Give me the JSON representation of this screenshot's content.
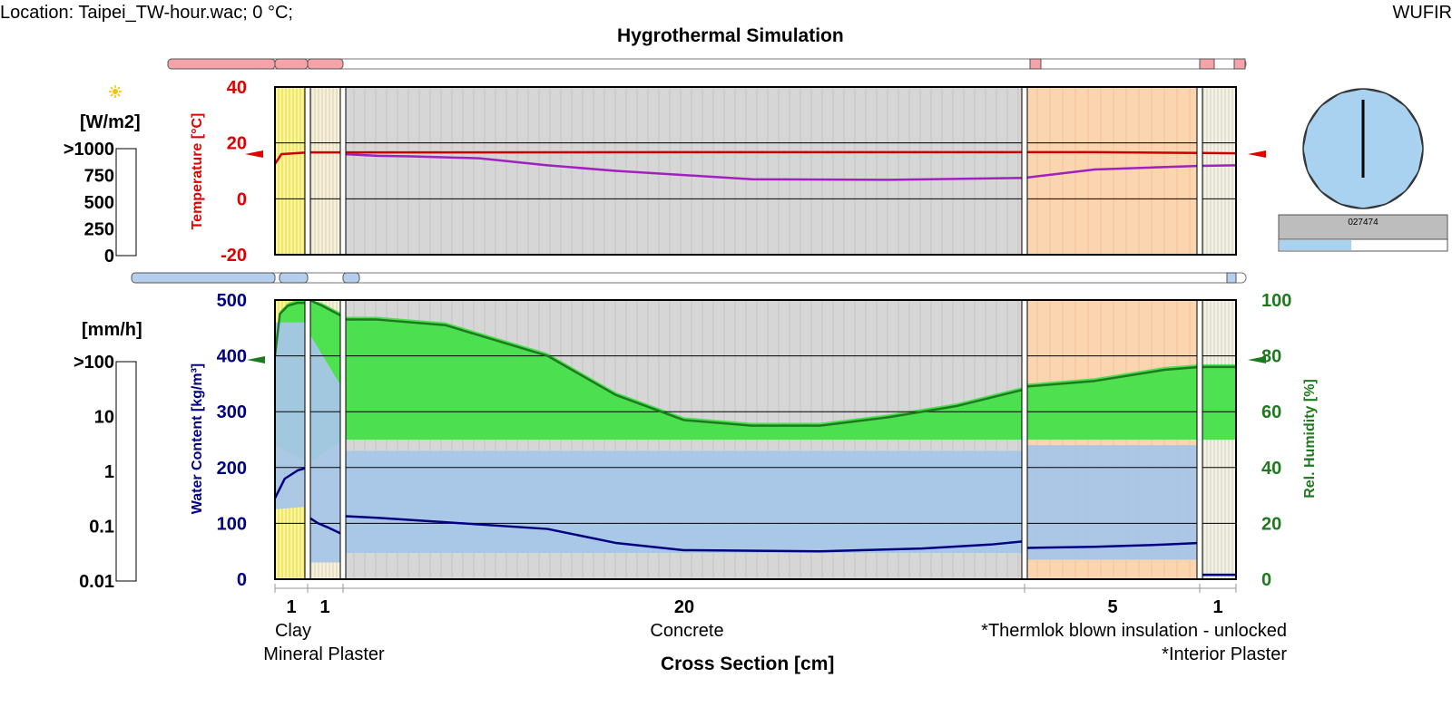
{
  "header": {
    "location": "Location: Taipei_TW-hour.wac; 0 °C;",
    "title": "Hygrothermal Simulation",
    "app": "WUFIR"
  },
  "radiation_scale": {
    "unit": "[W/m2]",
    "ticks": [
      ">1000",
      "750",
      "500",
      "250",
      "0"
    ],
    "fill_fraction": 0
  },
  "rain_scale": {
    "unit": "[mm/h]",
    "ticks": [
      ">100",
      "10",
      "1",
      "0.1",
      "0.01"
    ],
    "fill_fraction": 0
  },
  "orientation": {
    "counter": "027474",
    "progress_fraction": 0.43
  },
  "colors": {
    "temperature": "#cc0000",
    "dewpoint": "#a020c0",
    "water_content": "#000080",
    "water_band": "#a7c6e8",
    "rh": "#1e7a1e",
    "rh_band": "#44e04a",
    "clay": "#fbf59a",
    "mineral_plaster": "#f7f0d8",
    "concrete": "#d6d6d6",
    "insulation": "#fbd5b0",
    "interior_plaster": "#f2f2e8"
  },
  "cross_section": {
    "xlabel": "Cross Section [cm]",
    "layers": [
      {
        "name": "Clay",
        "thickness": 1,
        "thickness_label": "1"
      },
      {
        "name": "Mineral Plaster",
        "thickness": 1,
        "thickness_label": "1"
      },
      {
        "name": "Concrete",
        "thickness": 20,
        "thickness_label": "20"
      },
      {
        "name": "*Thermlok blown insulation - unlocked",
        "thickness": 5,
        "thickness_label": "5"
      },
      {
        "name": "*Interior Plaster",
        "thickness": 1,
        "thickness_label": "1"
      }
    ]
  },
  "chart_data": [
    {
      "type": "line",
      "ylabel": "Temperature [°C]",
      "ylim": [
        -20,
        40
      ],
      "yticks": [
        "40",
        "20",
        "0",
        "-20"
      ],
      "grid": true,
      "series": [
        {
          "name": "Temperature",
          "x": [
            0,
            0.2,
            0.5,
            1.0,
            2.0,
            3.0,
            6.0,
            12.0,
            18.0,
            22.0,
            24.0,
            27.0,
            28.0
          ],
          "y": [
            12.5,
            16.0,
            16.2,
            16.6,
            16.6,
            16.6,
            16.6,
            16.7,
            16.7,
            16.7,
            16.7,
            16.4,
            16.3
          ]
        },
        {
          "name": "Dew Point",
          "x": [
            2.0,
            3.0,
            4.0,
            6.0,
            8.0,
            10.0,
            12.0,
            14.0,
            18.0,
            22.0,
            24.0,
            27.0,
            28.0
          ],
          "y": [
            16.0,
            15.4,
            15.2,
            14.5,
            12.0,
            10.0,
            8.5,
            7.0,
            6.8,
            7.5,
            10.5,
            11.8,
            12.0
          ]
        }
      ]
    },
    {
      "type": "line",
      "ylabel": "Water Content [kg/m³]",
      "ylabel_right": "Rel. Humidity [%]",
      "ylim": [
        0,
        500
      ],
      "ylim_right": [
        0,
        100
      ],
      "yticks": [
        "500",
        "400",
        "300",
        "200",
        "100",
        "0"
      ],
      "yticks_right": [
        "100",
        "80",
        "60",
        "40",
        "20",
        "0"
      ],
      "grid": true,
      "series": [
        {
          "name": "Water Content",
          "axis": "left",
          "x": [
            0,
            0.3,
            0.7,
            1.0,
            1.05,
            1.3,
            1.6,
            2.0,
            2.05,
            3.0,
            5.0,
            8.0,
            10.0,
            12.0,
            16.0,
            19.0,
            21.0,
            22.0,
            22.05,
            24.0,
            26.0,
            27.0,
            27.05,
            28.0
          ],
          "y": [
            145,
            180,
            195,
            200,
            110,
            100,
            92,
            80,
            113,
            110,
            102,
            90,
            65,
            52,
            50,
            55,
            62,
            68,
            56,
            58,
            62,
            65,
            8,
            8
          ]
        },
        {
          "name": "Relative Humidity",
          "axis": "right",
          "x": [
            0,
            0.15,
            0.4,
            0.7,
            1.0,
            1.05,
            1.4,
            2.0,
            2.05,
            3.0,
            5.0,
            8.0,
            10.0,
            12.0,
            14.0,
            16.0,
            18.0,
            20.0,
            22.0,
            22.05,
            24.0,
            26.0,
            27.0,
            27.05,
            28.0
          ],
          "y": [
            80,
            95,
            98,
            99,
            99,
            100,
            98,
            94,
            93,
            93,
            91,
            80,
            66,
            57,
            55,
            55,
            58,
            62,
            68,
            69,
            71,
            75,
            76,
            76,
            76
          ]
        }
      ]
    }
  ]
}
